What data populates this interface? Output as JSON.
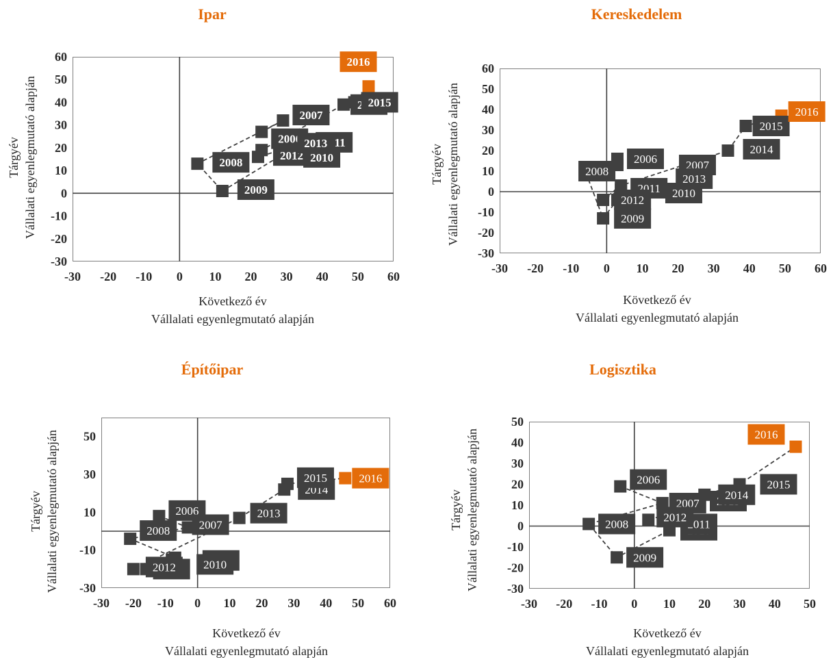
{
  "chart_data": [
    {
      "type": "scatter",
      "title": "Ipar",
      "xlabel": [
        "Következő év",
        "Vállalati egyenlegmutató alapján"
      ],
      "ylabel": [
        "Tárgyév",
        "Vállalati egyenlegmutató alapján"
      ],
      "xlim": [
        -30,
        60
      ],
      "ylim": [
        -30,
        60
      ],
      "xticks": [
        -30,
        -20,
        -10,
        0,
        10,
        20,
        30,
        40,
        50,
        60
      ],
      "yticks": [
        -30,
        -20,
        -10,
        0,
        10,
        20,
        30,
        40,
        50,
        60
      ],
      "connected": true,
      "highlight_color": "#E46C0A",
      "point_color": "#404040",
      "points": [
        {
          "label": "2006",
          "x": 23,
          "y": 27
        },
        {
          "label": "2007",
          "x": 29,
          "y": 32
        },
        {
          "label": "2008",
          "x": 5,
          "y": 13
        },
        {
          "label": "2009",
          "x": 12,
          "y": 1
        },
        {
          "label": "2010",
          "x": 32,
          "y": 20
        },
        {
          "label": "2011",
          "x": 37,
          "y": 23
        },
        {
          "label": "2012",
          "x": 22,
          "y": 16
        },
        {
          "label": "2013",
          "x": 23,
          "y": 19
        },
        {
          "label": "2014",
          "x": 46,
          "y": 39
        },
        {
          "label": "2015",
          "x": 49,
          "y": 40
        },
        {
          "label": "2016",
          "x": 53,
          "y": 47,
          "highlight": true
        }
      ]
    },
    {
      "type": "scatter",
      "title": "Kereskedelem",
      "xlabel": [
        "Következő év",
        "Vállalati egyenlegmutató alapján"
      ],
      "ylabel": [
        "Tárgyév",
        "Vállalati egyenlegmutató alapján"
      ],
      "xlim": [
        -30,
        60
      ],
      "ylim": [
        -30,
        60
      ],
      "xticks": [
        -30,
        -20,
        -10,
        0,
        10,
        20,
        30,
        40,
        50,
        60
      ],
      "yticks": [
        -30,
        -20,
        -10,
        0,
        10,
        20,
        30,
        40,
        50,
        60
      ],
      "connected": true,
      "highlight_color": "#E46C0A",
      "point_color": "#404040",
      "points": [
        {
          "label": "2006",
          "x": 3,
          "y": 16
        },
        {
          "label": "2007",
          "x": 3,
          "y": 13
        },
        {
          "label": "2008",
          "x": -6,
          "y": 10
        },
        {
          "label": "2009",
          "x": -1,
          "y": -13
        },
        {
          "label": "2010",
          "x": 3,
          "y": -4
        },
        {
          "label": "2011",
          "x": 4,
          "y": 1
        },
        {
          "label": "2012",
          "x": -1,
          "y": -4
        },
        {
          "label": "2013",
          "x": 4,
          "y": 3
        },
        {
          "label": "2014",
          "x": 34,
          "y": 20
        },
        {
          "label": "2015",
          "x": 39,
          "y": 32
        },
        {
          "label": "2016",
          "x": 49,
          "y": 37,
          "highlight": true
        }
      ]
    },
    {
      "type": "scatter",
      "title": "Építőipar",
      "xlabel": [
        "Következő év",
        "Vállalati egyenlegmutató alapján"
      ],
      "ylabel": [
        "Tárgyév",
        "Vállalati egyenlegmutató alapján"
      ],
      "xlim": [
        -30,
        60
      ],
      "ylim": [
        -30,
        60
      ],
      "xticks": [
        -30,
        -20,
        -10,
        0,
        10,
        20,
        30,
        40,
        50,
        60
      ],
      "yticks": [
        -30,
        -10,
        10,
        30,
        50
      ],
      "connected": true,
      "highlight_color": "#E46C0A",
      "point_color": "#404040",
      "points": [
        {
          "label": "2006",
          "x": -12,
          "y": 8
        },
        {
          "label": "2007",
          "x": -3,
          "y": 2
        },
        {
          "label": "2008",
          "x": -21,
          "y": -4
        },
        {
          "label": "2009",
          "x": -7,
          "y": -14
        },
        {
          "label": "2010",
          "x": -8,
          "y": -15
        },
        {
          "label": "2011",
          "x": -16,
          "y": -20
        },
        {
          "label": "2012",
          "x": -20,
          "y": -20
        },
        {
          "label": "2013",
          "x": 13,
          "y": 7
        },
        {
          "label": "2014",
          "x": 27,
          "y": 22
        },
        {
          "label": "2015",
          "x": 28,
          "y": 25
        },
        {
          "label": "2016",
          "x": 46,
          "y": 28,
          "highlight": true
        }
      ]
    },
    {
      "type": "scatter",
      "title": "Logisztika",
      "xlabel": [
        "Következő év",
        "Vállalati egyenlegmutató alapján"
      ],
      "ylabel": [
        "Tárgyév",
        "Vállalati egyenlegmutató alapján"
      ],
      "xlim": [
        -30,
        50
      ],
      "ylim": [
        -30,
        50
      ],
      "xticks": [
        -30,
        -20,
        -10,
        0,
        10,
        20,
        30,
        40,
        50
      ],
      "yticks": [
        -30,
        -20,
        -10,
        0,
        10,
        20,
        30,
        40,
        50
      ],
      "connected": true,
      "highlight_color": "#E46C0A",
      "point_color": "#404040",
      "points": [
        {
          "label": "2006",
          "x": -4,
          "y": 19
        },
        {
          "label": "2007",
          "x": 8,
          "y": 11
        },
        {
          "label": "2008",
          "x": -13,
          "y": 1
        },
        {
          "label": "2009",
          "x": -5,
          "y": -15
        },
        {
          "label": "2010",
          "x": 10,
          "y": -2
        },
        {
          "label": "2011",
          "x": 10,
          "y": 1
        },
        {
          "label": "2012",
          "x": 4,
          "y": 3
        },
        {
          "label": "2013",
          "x": 18,
          "y": 10
        },
        {
          "label": "2014",
          "x": 20,
          "y": 15
        },
        {
          "label": "2015",
          "x": 30,
          "y": 20
        },
        {
          "label": "2016",
          "x": 46,
          "y": 38,
          "highlight": true
        }
      ]
    }
  ]
}
